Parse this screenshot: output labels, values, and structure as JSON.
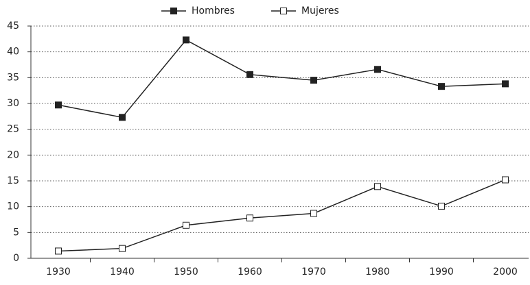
{
  "chart_data": {
    "type": "line",
    "categories": [
      "1930",
      "1940",
      "1950",
      "1960",
      "1970",
      "1980",
      "1990",
      "2000"
    ],
    "series": [
      {
        "name": "Hombres",
        "color": "#222222",
        "marker": "filled-square",
        "values": [
          29.7,
          27.3,
          42.3,
          35.6,
          34.5,
          36.6,
          33.3,
          33.8
        ]
      },
      {
        "name": "Mujeres",
        "color": "#222222",
        "marker": "open-square",
        "values": [
          1.4,
          1.9,
          6.4,
          7.8,
          8.7,
          13.9,
          10.1,
          15.2
        ]
      }
    ],
    "ylim": [
      0,
      45
    ],
    "yticks": [
      0,
      5,
      10,
      15,
      20,
      25,
      30,
      35,
      40,
      45
    ],
    "grid": true,
    "legend": "top"
  }
}
